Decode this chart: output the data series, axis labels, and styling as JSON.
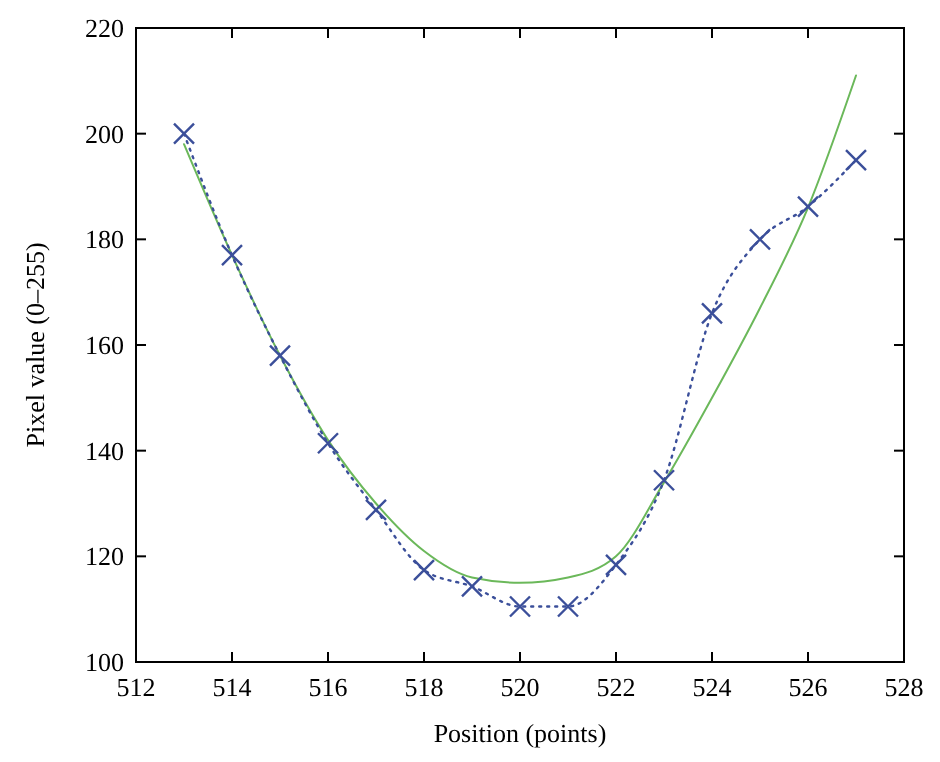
{
  "chart_data": {
    "type": "line",
    "xlabel": "Position (points)",
    "ylabel": "Pixel value (0–255)",
    "xlim": [
      512,
      528
    ],
    "xticks": [
      512,
      514,
      516,
      518,
      520,
      522,
      524,
      526,
      528
    ],
    "ylim": [
      100,
      220
    ],
    "yticks": [
      100,
      120,
      140,
      160,
      180,
      200,
      220
    ],
    "grid": false,
    "series": [
      {
        "color": "#6bb85a",
        "marker": "none",
        "line_style": "solid",
        "x": [
          513,
          514,
          515,
          516,
          517,
          518,
          519,
          520,
          521,
          522,
          523,
          524,
          525,
          526,
          527
        ],
        "values": [
          198,
          177,
          158,
          142,
          130,
          121,
          116,
          115,
          116,
          120,
          134,
          150,
          167,
          186,
          211
        ]
      },
      {
        "color": "#3b4f9a",
        "marker": "cross",
        "line_style": "dotted",
        "x": [
          513,
          514,
          515,
          516,
          517,
          518,
          519,
          520,
          521,
          522,
          523,
          524,
          525,
          526,
          527
        ],
        "values": [
          200,
          177,
          158,
          141.4,
          128.8,
          117.4,
          114.3,
          110.5,
          110.5,
          118.4,
          134.4,
          166,
          180,
          186.2,
          195
        ]
      }
    ]
  }
}
